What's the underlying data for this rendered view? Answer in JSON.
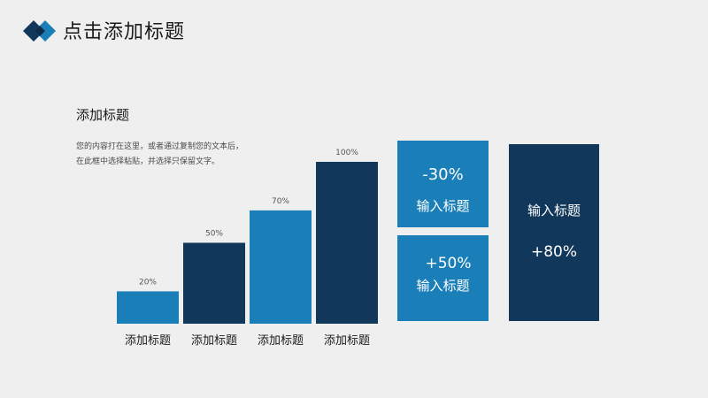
{
  "header": {
    "title": "点击添加标题",
    "logo_color_dark": "#11375a",
    "logo_color_light": "#1a7fb8"
  },
  "content": {
    "subtitle": "添加标题",
    "body": "您的内容打在这里，或者通过复制您的文本后，在此框中选择粘贴，并选择只保留文字。"
  },
  "chart_data": {
    "type": "bar",
    "categories": [
      "添加标题",
      "添加标题",
      "添加标题",
      "添加标题"
    ],
    "values": [
      20,
      50,
      70,
      100
    ],
    "value_labels": [
      "20%",
      "50%",
      "70%",
      "100%"
    ],
    "colors": [
      "#1a7fb8",
      "#11375a",
      "#1a7fb8",
      "#11375a"
    ],
    "ylim": [
      0,
      100
    ],
    "grid": false,
    "title": "",
    "xlabel": "",
    "ylabel": ""
  },
  "boxes": [
    {
      "percent": "-30%",
      "label": "输入标题",
      "color": "#1a7fb8"
    },
    {
      "percent": "+50%",
      "label": "输入标题",
      "color": "#1a7fb8"
    },
    {
      "percent": "+80%",
      "label": "输入标题",
      "color": "#11375a"
    }
  ]
}
